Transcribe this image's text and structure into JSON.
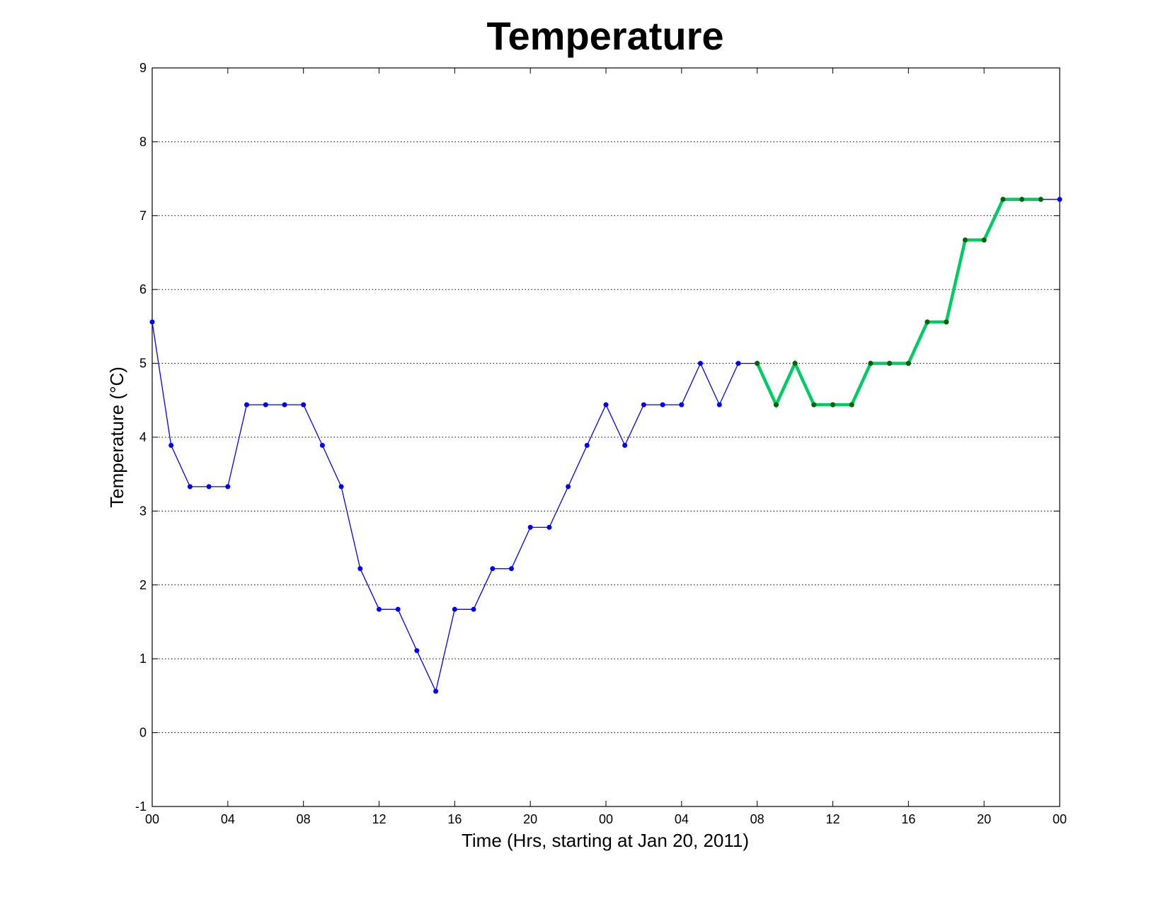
{
  "chart_data": {
    "type": "line",
    "title": "Temperature",
    "xlabel": "Time (Hrs, starting at Jan 20, 2011)",
    "ylabel": "Temperature (°C)",
    "x": [
      0,
      1,
      2,
      3,
      4,
      5,
      6,
      7,
      8,
      9,
      10,
      11,
      12,
      13,
      14,
      15,
      16,
      17,
      18,
      19,
      20,
      21,
      22,
      23,
      24,
      25,
      26,
      27,
      28,
      29,
      30,
      31,
      32,
      33,
      34,
      35,
      36,
      37,
      38,
      39,
      40,
      41,
      42,
      43,
      44,
      45,
      46,
      47,
      48
    ],
    "xlim": [
      0,
      48
    ],
    "ylim": [
      -1,
      9
    ],
    "xticks": {
      "values": [
        0,
        4,
        8,
        12,
        16,
        20,
        24,
        28,
        32,
        36,
        40,
        44,
        48
      ],
      "labels": [
        "00",
        "04",
        "08",
        "12",
        "16",
        "20",
        "00",
        "04",
        "08",
        "12",
        "16",
        "20",
        "00"
      ]
    },
    "yticks": {
      "values": [
        -1,
        0,
        1,
        2,
        3,
        4,
        5,
        6,
        7,
        8,
        9
      ],
      "labels": [
        "-1",
        "0",
        "1",
        "2",
        "3",
        "4",
        "5",
        "6",
        "7",
        "8",
        "9"
      ]
    },
    "grid": "horizontal dotted",
    "series": [
      {
        "color": "#0000ff",
        "style": "thin line with dot markers",
        "x": [
          0,
          1,
          2,
          3,
          4,
          5,
          6,
          7,
          8,
          9,
          10,
          11,
          12,
          13,
          14,
          15,
          16,
          17,
          18,
          19,
          20,
          21,
          22,
          23,
          24,
          25,
          26,
          27,
          28,
          29,
          30,
          31,
          32,
          33,
          34,
          35,
          36,
          37,
          38,
          39,
          40,
          41,
          42,
          43,
          44,
          45,
          46,
          47,
          48
        ],
        "values": [
          5.56,
          3.89,
          3.33,
          3.33,
          3.33,
          4.44,
          4.44,
          4.44,
          4.44,
          3.89,
          3.33,
          2.22,
          1.67,
          1.67,
          1.11,
          0.56,
          1.67,
          1.67,
          2.22,
          2.22,
          2.78,
          2.78,
          3.33,
          3.89,
          4.44,
          3.89,
          4.44,
          4.44,
          4.44,
          5.0,
          4.44,
          5.0,
          5.0,
          4.44,
          5.0,
          4.44,
          4.44,
          4.44,
          5.0,
          5.0,
          5.0,
          5.56,
          5.56,
          6.67,
          6.67,
          7.22,
          7.22,
          7.22,
          7.22
        ]
      },
      {
        "color": "#00cc66",
        "marker_color": "#006600",
        "style": "thick line with dot markers",
        "x": [
          32,
          33,
          34,
          35,
          36,
          37,
          38,
          39,
          40,
          41,
          42,
          43,
          44,
          45,
          46,
          47
        ],
        "values": [
          5.0,
          4.44,
          5.0,
          4.44,
          4.44,
          4.44,
          5.0,
          5.0,
          5.0,
          5.56,
          5.56,
          6.67,
          6.67,
          7.22,
          7.22,
          7.22
        ]
      }
    ]
  }
}
